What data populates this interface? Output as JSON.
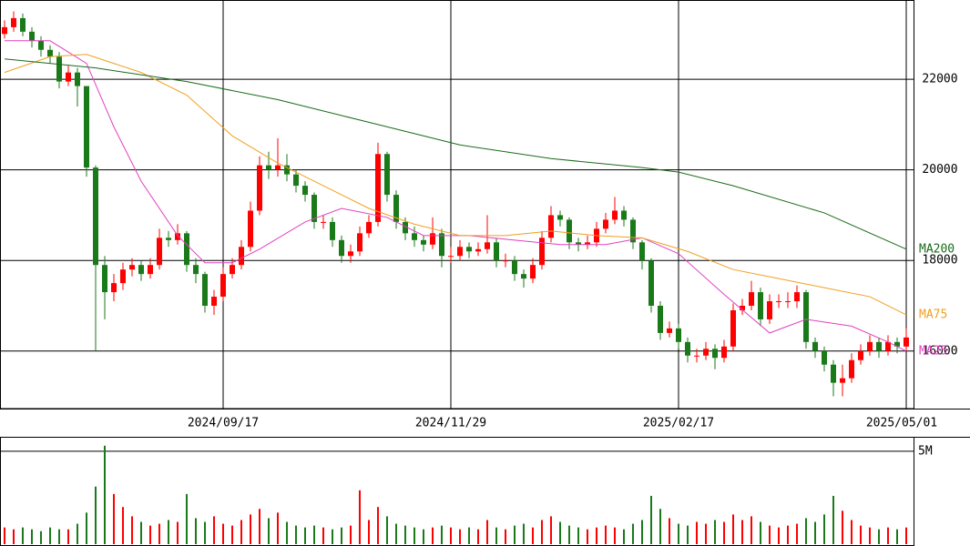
{
  "chart_data": {
    "type": "candlestick",
    "categories": [
      null,
      null,
      null,
      null,
      null,
      null,
      null,
      null,
      null,
      null,
      null,
      null,
      null,
      null,
      null,
      null,
      null,
      null,
      null,
      null,
      null,
      null,
      null,
      null,
      "2024/09/17",
      null,
      null,
      null,
      null,
      null,
      null,
      null,
      null,
      null,
      null,
      null,
      null,
      null,
      null,
      null,
      null,
      null,
      null,
      null,
      null,
      null,
      null,
      null,
      null,
      "2024/11/29",
      null,
      null,
      null,
      null,
      null,
      null,
      null,
      null,
      null,
      null,
      null,
      null,
      null,
      null,
      null,
      null,
      null,
      null,
      null,
      null,
      null,
      null,
      null,
      null,
      "2025/02/17",
      null,
      null,
      null,
      null,
      null,
      null,
      null,
      null,
      null,
      null,
      null,
      null,
      null,
      null,
      null,
      null,
      null,
      null,
      null,
      null,
      null,
      null,
      null,
      null,
      "2025/05/01"
    ],
    "open": [
      23000,
      23150,
      23350,
      23050,
      22850,
      22650,
      22500,
      21950,
      22150,
      21850,
      20050,
      17900,
      17300,
      17500,
      17800,
      17900,
      17700,
      17900,
      18500,
      18450,
      18600,
      17900,
      17700,
      17000,
      17200,
      17700,
      17900,
      18300,
      19100,
      20100,
      20000,
      20100,
      19900,
      19650,
      19450,
      18850,
      18850,
      18450,
      18100,
      18200,
      18600,
      18850,
      20350,
      19450,
      18850,
      18600,
      18450,
      18350,
      18600,
      18100,
      18100,
      18300,
      18200,
      18250,
      18400,
      18000,
      18000,
      17700,
      17600,
      17900,
      18500,
      19000,
      18900,
      18400,
      18350,
      18400,
      18700,
      18900,
      19100,
      18900,
      18400,
      18000,
      17000,
      16400,
      16500,
      16200,
      15900,
      15900,
      16050,
      15850,
      16100,
      16900,
      17000,
      17300,
      16700,
      17100,
      17100,
      17100,
      17300,
      16200,
      16000,
      15700,
      15300,
      15400,
      15800,
      16000,
      16200,
      16000,
      16200,
      16100
    ],
    "high": [
      23300,
      23500,
      23450,
      23150,
      22950,
      22750,
      22600,
      22300,
      22250,
      21850,
      20100,
      18100,
      17700,
      17950,
      18050,
      18000,
      18050,
      18700,
      18650,
      18800,
      18650,
      18050,
      17750,
      17350,
      17850,
      18050,
      18450,
      19300,
      20300,
      20400,
      20700,
      20350,
      20000,
      19750,
      19500,
      19000,
      18950,
      18550,
      18350,
      18750,
      19000,
      20600,
      20400,
      19550,
      18950,
      18750,
      18550,
      18950,
      18700,
      18300,
      18450,
      18400,
      18400,
      19000,
      18500,
      18150,
      18100,
      17800,
      18050,
      18650,
      19200,
      19100,
      18950,
      18500,
      18550,
      18850,
      19050,
      19400,
      19200,
      18950,
      18450,
      18050,
      17100,
      16650,
      16600,
      16300,
      16050,
      16200,
      16150,
      16250,
      17050,
      17150,
      17550,
      17400,
      17250,
      17250,
      17300,
      17450,
      17350,
      16300,
      16100,
      15800,
      15700,
      15950,
      16150,
      16350,
      16300,
      16350,
      16300,
      16500
    ],
    "low": [
      22900,
      23050,
      22950,
      22700,
      22500,
      22350,
      21800,
      21850,
      21400,
      19850,
      16000,
      16700,
      17100,
      17350,
      17650,
      17550,
      17600,
      17800,
      18300,
      18350,
      17750,
      17500,
      16850,
      16800,
      17100,
      17600,
      17800,
      18200,
      19000,
      19800,
      19850,
      19750,
      19500,
      19300,
      18700,
      18700,
      18300,
      17950,
      17950,
      18100,
      18500,
      18750,
      19300,
      18700,
      18450,
      18300,
      18200,
      18250,
      17850,
      17950,
      18000,
      18050,
      18100,
      18150,
      17850,
      17850,
      17550,
      17400,
      17500,
      17800,
      18400,
      18750,
      18250,
      18200,
      18250,
      18300,
      18600,
      18800,
      18750,
      18250,
      17800,
      16850,
      16250,
      16300,
      16050,
      15750,
      15750,
      15800,
      15600,
      15750,
      16000,
      16800,
      16900,
      16550,
      16600,
      16950,
      16950,
      16950,
      16050,
      15850,
      15550,
      15000,
      15000,
      15300,
      15700,
      15900,
      15850,
      15900,
      15950,
      16000
    ],
    "close": [
      23150,
      23350,
      23050,
      22850,
      22650,
      22500,
      21950,
      22150,
      21850,
      20050,
      17900,
      17300,
      17500,
      17800,
      17900,
      17700,
      17900,
      18500,
      18450,
      18600,
      17900,
      17700,
      17000,
      17200,
      17700,
      17900,
      18300,
      19100,
      20100,
      20000,
      20100,
      19900,
      19650,
      19450,
      18850,
      18850,
      18450,
      18100,
      18200,
      18600,
      18850,
      20350,
      19450,
      18850,
      18600,
      18450,
      18350,
      18600,
      18100,
      18100,
      18300,
      18200,
      18250,
      18400,
      18000,
      18000,
      17700,
      17600,
      17900,
      18500,
      19000,
      18900,
      18400,
      18350,
      18400,
      18700,
      18900,
      19100,
      18900,
      18400,
      18000,
      17000,
      16400,
      16500,
      16200,
      15900,
      15900,
      16050,
      15850,
      16100,
      16900,
      17000,
      17300,
      16700,
      17100,
      17100,
      17100,
      17300,
      16200,
      16000,
      15700,
      15300,
      15400,
      15800,
      16000,
      16200,
      16000,
      16200,
      16100,
      16300
    ],
    "up_color": "#ff0000",
    "down_color": "#1a7a1a",
    "ylim": [
      14730,
      23750
    ],
    "yticks": [
      16000,
      18000,
      20000,
      22000
    ],
    "grid": true,
    "ma": [
      {
        "name": "MA25",
        "color": "#e040c0",
        "x": [
          0,
          5,
          9,
          12,
          15,
          19,
          22,
          25,
          28,
          33,
          37,
          42,
          46,
          51,
          56,
          61,
          66,
          70,
          74,
          79,
          84,
          88,
          93,
          97,
          99
        ],
        "values": [
          22850,
          22850,
          22350,
          20950,
          19750,
          18550,
          17950,
          17950,
          18250,
          18850,
          19150,
          18950,
          18550,
          18550,
          18450,
          18350,
          18350,
          18500,
          18150,
          17250,
          16400,
          16700,
          16550,
          16200,
          16000
        ]
      },
      {
        "name": "MA75",
        "color": "#f0a020",
        "x": [
          0,
          5,
          9,
          15,
          20,
          25,
          30,
          35,
          40,
          45,
          50,
          55,
          60,
          65,
          70,
          75,
          80,
          85,
          90,
          95,
          99
        ],
        "values": [
          22150,
          22500,
          22550,
          22150,
          21650,
          20750,
          20150,
          19650,
          19150,
          18800,
          18550,
          18550,
          18650,
          18550,
          18500,
          18200,
          17800,
          17600,
          17400,
          17200,
          16800
        ]
      },
      {
        "name": "MA200",
        "color": "#1a6a1a",
        "x": [
          0,
          10,
          20,
          30,
          40,
          50,
          60,
          70,
          74,
          80,
          90,
          99
        ],
        "values": [
          22450,
          22250,
          21950,
          21550,
          21050,
          20550,
          20250,
          20050,
          19950,
          19650,
          19050,
          18250
        ]
      }
    ],
    "volume": {
      "values": [
        0.9,
        0.8,
        0.9,
        0.8,
        0.7,
        0.9,
        0.8,
        0.8,
        1.1,
        1.7,
        3.1,
        5.3,
        2.7,
        2.0,
        1.5,
        1.2,
        1.0,
        1.1,
        1.3,
        1.2,
        2.7,
        1.4,
        1.2,
        1.5,
        1.1,
        1.0,
        1.3,
        1.6,
        1.9,
        1.4,
        1.7,
        1.2,
        1.0,
        0.9,
        1.0,
        0.9,
        0.8,
        0.9,
        1.0,
        2.9,
        1.3,
        2.0,
        1.5,
        1.1,
        1.0,
        0.9,
        0.8,
        0.9,
        1.0,
        0.9,
        0.8,
        0.9,
        0.8,
        1.3,
        0.9,
        0.8,
        1.0,
        1.1,
        0.9,
        1.3,
        1.5,
        1.2,
        1.0,
        0.9,
        0.8,
        0.9,
        1.0,
        0.9,
        0.8,
        1.1,
        1.3,
        2.6,
        1.9,
        1.4,
        1.1,
        1.0,
        1.2,
        1.1,
        1.3,
        1.2,
        1.6,
        1.3,
        1.5,
        1.2,
        1.0,
        0.9,
        1.0,
        1.1,
        1.4,
        1.2,
        1.6,
        2.6,
        1.8,
        1.3,
        1.0,
        0.9,
        0.8,
        0.9,
        0.8,
        0.9
      ],
      "ylim": [
        0,
        5.78
      ],
      "yticks": [
        {
          "value": 5,
          "label": "5M"
        }
      ]
    }
  }
}
